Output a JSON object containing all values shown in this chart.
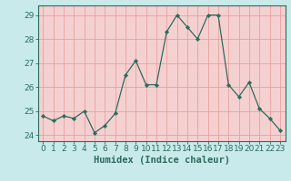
{
  "x": [
    0,
    1,
    2,
    3,
    4,
    5,
    6,
    7,
    8,
    9,
    10,
    11,
    12,
    13,
    14,
    15,
    16,
    17,
    18,
    19,
    20,
    21,
    22,
    23
  ],
  "y": [
    24.8,
    24.6,
    24.8,
    24.7,
    25.0,
    24.1,
    24.4,
    24.9,
    26.5,
    27.1,
    26.1,
    26.1,
    28.3,
    29.0,
    28.5,
    28.0,
    29.0,
    29.0,
    26.1,
    25.6,
    26.2,
    25.1,
    24.7,
    24.2
  ],
  "line_color": "#2d6b5e",
  "marker_color": "#2d6b5e",
  "bg_color": "#c8eaea",
  "plot_bg_color": "#f5d0d0",
  "grid_color": "#e8a0a0",
  "axis_color": "#2d6b5e",
  "xlabel": "Humidex (Indice chaleur)",
  "ylim": [
    23.75,
    29.4
  ],
  "xlim": [
    -0.5,
    23.5
  ],
  "yticks": [
    24,
    25,
    26,
    27,
    28,
    29
  ],
  "xticks": [
    0,
    1,
    2,
    3,
    4,
    5,
    6,
    7,
    8,
    9,
    10,
    11,
    12,
    13,
    14,
    15,
    16,
    17,
    18,
    19,
    20,
    21,
    22,
    23
  ],
  "fontsize_axis": 6.5,
  "fontsize_label": 7.5
}
